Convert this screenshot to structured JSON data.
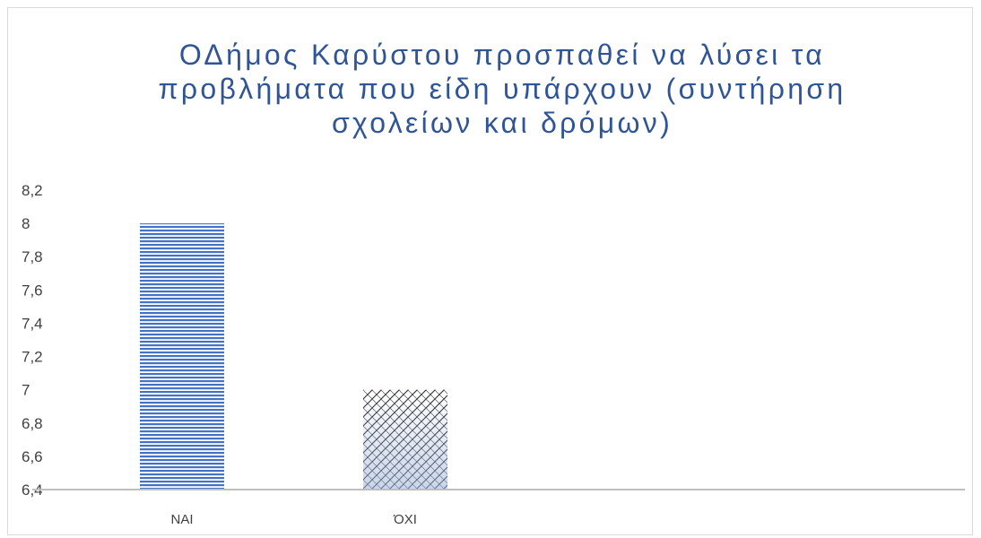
{
  "chart_data": {
    "type": "bar",
    "title_lines": [
      "ΟΔήμος Καρύστου προσπαθεί να λύσει τα",
      "προβλήματα που είδη υπάρχουν (συντήρηση",
      "σχολείων και δρόμων)"
    ],
    "categories": [
      "ΝΑΙ",
      "ΌΧΙ"
    ],
    "values": [
      8,
      7
    ],
    "ylim": [
      6.4,
      8.2
    ],
    "yticks": [
      "6,4",
      "6,6",
      "6,8",
      "7",
      "7,2",
      "7,4",
      "7,6",
      "7,8",
      "8",
      "8,2"
    ],
    "ytick_values": [
      6.4,
      6.6,
      6.8,
      7.0,
      7.2,
      7.4,
      7.6,
      7.8,
      8.0,
      8.2
    ],
    "grid": false,
    "bar_styles": [
      "horizontal-stripes",
      "crosshatch"
    ],
    "colors": {
      "title": "#2f5597",
      "bar1": "#4472c4",
      "axis": "#bfbfbf",
      "text": "#404040"
    }
  }
}
